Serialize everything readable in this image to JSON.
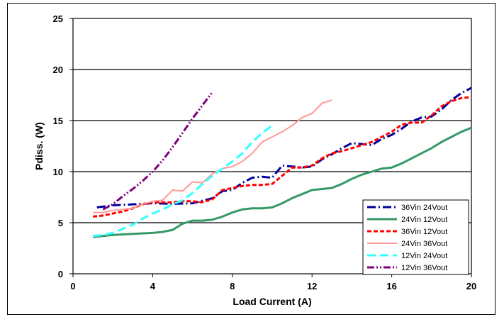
{
  "chart_data": {
    "type": "line",
    "title": "",
    "xlabel": "Load Current (A)",
    "ylabel": "Pdiss. (W)",
    "xlim": [
      0,
      20
    ],
    "ylim": [
      0,
      25
    ],
    "xticks": [
      0,
      4,
      8,
      12,
      16,
      20
    ],
    "yticks": [
      0,
      5,
      10,
      15,
      20,
      25
    ],
    "grid": "horizontal",
    "legend_position": "bottom-right",
    "series": [
      {
        "name": "36Vin 24Vout",
        "color": "#000099",
        "dash": "dashdot",
        "width": 3,
        "x": [
          1.2,
          2,
          3,
          4,
          5,
          6,
          7,
          7.5,
          8,
          8.5,
          9,
          9.5,
          10,
          10.5,
          11,
          11.5,
          12,
          12.5,
          13,
          13.5,
          14,
          14.5,
          15,
          15.5,
          16,
          16.5,
          17,
          17.5,
          18,
          18.5,
          19,
          19.5,
          20
        ],
        "y": [
          6.5,
          6.7,
          6.8,
          6.9,
          6.85,
          6.9,
          7.4,
          8.1,
          8.2,
          8.9,
          9.4,
          9.5,
          9.4,
          10.6,
          10.5,
          10.4,
          10.5,
          11.2,
          11.7,
          12.3,
          12.8,
          12.7,
          12.6,
          13.2,
          13.6,
          14.2,
          14.9,
          15.3,
          15.4,
          16.1,
          17.0,
          17.7,
          18.2
        ]
      },
      {
        "name": "24Vin 12Vout",
        "color": "#339966",
        "dash": "solid",
        "width": 3,
        "x": [
          1,
          2,
          3,
          4,
          4.5,
          5,
          5.5,
          6,
          6.5,
          7,
          7.5,
          8,
          8.5,
          9,
          9.5,
          10,
          10.5,
          11,
          11.5,
          12,
          12.5,
          13,
          13.5,
          14,
          14.5,
          15,
          15.5,
          16,
          16.5,
          17,
          17.5,
          18,
          18.5,
          19,
          19.5,
          20
        ],
        "y": [
          3.6,
          3.8,
          3.9,
          4.0,
          4.1,
          4.3,
          4.9,
          5.2,
          5.2,
          5.3,
          5.6,
          6.0,
          6.3,
          6.4,
          6.4,
          6.5,
          6.9,
          7.4,
          7.8,
          8.2,
          8.3,
          8.4,
          8.8,
          9.3,
          9.7,
          10.0,
          10.3,
          10.4,
          10.8,
          11.3,
          11.8,
          12.3,
          12.9,
          13.4,
          13.9,
          14.3
        ]
      },
      {
        "name": "36Vin 12Vout",
        "color": "#ff0000",
        "dash": "dash",
        "width": 3,
        "x": [
          1,
          1.5,
          2,
          2.5,
          3,
          3.5,
          4,
          4.5,
          5,
          5.5,
          6,
          6.5,
          7,
          7.5,
          8,
          8.5,
          9,
          9.5,
          10,
          10.5,
          11,
          11.5,
          12,
          12.5,
          13,
          13.5,
          14,
          14.5,
          15,
          15.5,
          16,
          16.5,
          17,
          17.5,
          18,
          18.5,
          19,
          19.5,
          20
        ],
        "y": [
          5.6,
          5.7,
          5.9,
          6.1,
          6.4,
          6.8,
          7.0,
          7.0,
          7.0,
          7.1,
          7.1,
          7.0,
          7.3,
          8.2,
          8.4,
          8.6,
          8.7,
          8.7,
          8.8,
          9.6,
          10.4,
          10.4,
          10.6,
          11.3,
          11.8,
          12.0,
          12.3,
          12.6,
          12.9,
          13.4,
          13.9,
          14.6,
          14.8,
          14.8,
          15.5,
          16.4,
          16.9,
          17.2,
          17.3
        ]
      },
      {
        "name": "24Vin 36Vout",
        "color": "#ff9999",
        "dash": "solid",
        "width": 2,
        "x": [
          1,
          1.5,
          2,
          2.5,
          3,
          3.5,
          4,
          4.5,
          5,
          5.5,
          6,
          6.5,
          7,
          7.5,
          8,
          8.5,
          9,
          9.5,
          10,
          10.5,
          11,
          11.5,
          12,
          12.5,
          13
        ],
        "y": [
          6.0,
          6.0,
          6.2,
          6.3,
          6.4,
          6.8,
          7.1,
          7.2,
          8.2,
          8.1,
          9.0,
          8.9,
          9.8,
          10.3,
          10.5,
          11.0,
          11.8,
          12.9,
          13.4,
          13.9,
          14.5,
          15.3,
          15.7,
          16.7,
          17.0
        ]
      },
      {
        "name": "12Vin 24Vout",
        "color": "#33ffff",
        "dash": "longdash",
        "width": 3,
        "x": [
          1,
          1.5,
          2,
          2.5,
          3,
          3.5,
          4,
          4.5,
          5,
          5.5,
          6,
          6.5,
          7,
          7.5,
          8,
          8.5,
          9,
          9.5,
          10
        ],
        "y": [
          3.7,
          3.8,
          4.0,
          4.4,
          4.8,
          5.4,
          5.9,
          6.3,
          6.8,
          7.2,
          7.9,
          8.8,
          9.6,
          10.3,
          11.0,
          11.8,
          12.9,
          13.8,
          14.5
        ]
      },
      {
        "name": "12Vin 36Vout",
        "color": "#7f007f",
        "dash": "dashdotdot",
        "width": 3,
        "x": [
          1.5,
          2,
          2.5,
          3,
          3.5,
          4,
          4.5,
          5,
          5.5,
          6,
          6.5,
          7
        ],
        "y": [
          6.3,
          6.8,
          7.6,
          8.3,
          9.1,
          10.0,
          11.1,
          12.4,
          13.8,
          15.2,
          16.5,
          17.8
        ]
      }
    ]
  }
}
